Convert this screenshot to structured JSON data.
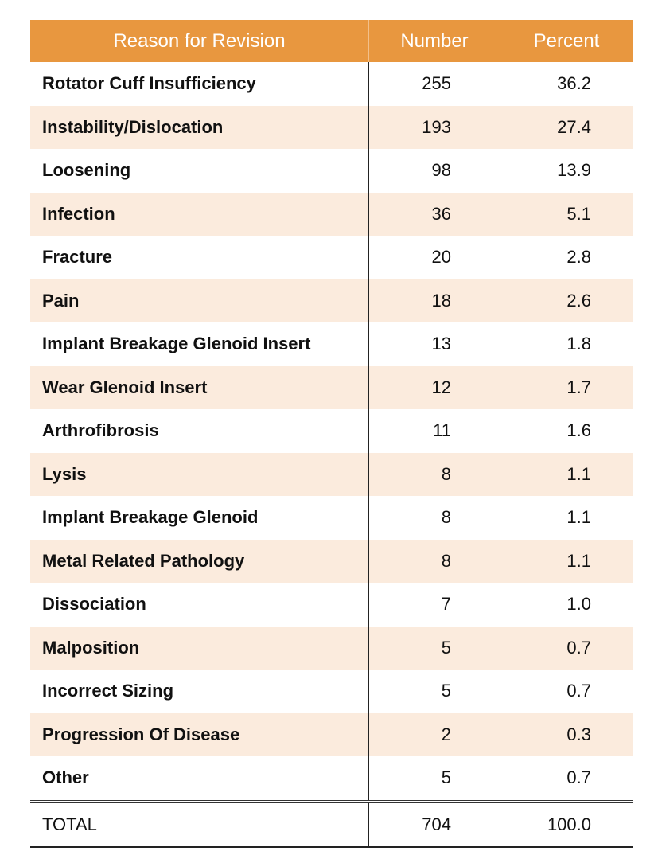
{
  "table": {
    "header": [
      "Reason for Revision",
      "Number",
      "Percent"
    ],
    "rows": [
      [
        "Rotator Cuff Insufficiency",
        "255",
        "36.2"
      ],
      [
        "Instability/Dislocation",
        "193",
        "27.4"
      ],
      [
        "Loosening",
        "98",
        "13.9"
      ],
      [
        "Infection",
        "36",
        "5.1"
      ],
      [
        "Fracture",
        "20",
        "2.8"
      ],
      [
        "Pain",
        "18",
        "2.6"
      ],
      [
        "Implant Breakage Glenoid Insert",
        "13",
        "1.8"
      ],
      [
        "Wear Glenoid Insert",
        "12",
        "1.7"
      ],
      [
        "Arthrofibrosis",
        "11",
        "1.6"
      ],
      [
        "Lysis",
        "8",
        "1.1"
      ],
      [
        "Implant Breakage Glenoid",
        "8",
        "1.1"
      ],
      [
        "Metal Related Pathology",
        "8",
        "1.1"
      ],
      [
        "Dissociation",
        "7",
        "1.0"
      ],
      [
        "Malposition",
        "5",
        "0.7"
      ],
      [
        "Incorrect Sizing",
        "5",
        "0.7"
      ],
      [
        "Progression Of Disease",
        "2",
        "0.3"
      ],
      [
        "Other",
        "5",
        "0.7"
      ]
    ],
    "total": [
      "TOTAL",
      "704",
      "100.0"
    ]
  }
}
